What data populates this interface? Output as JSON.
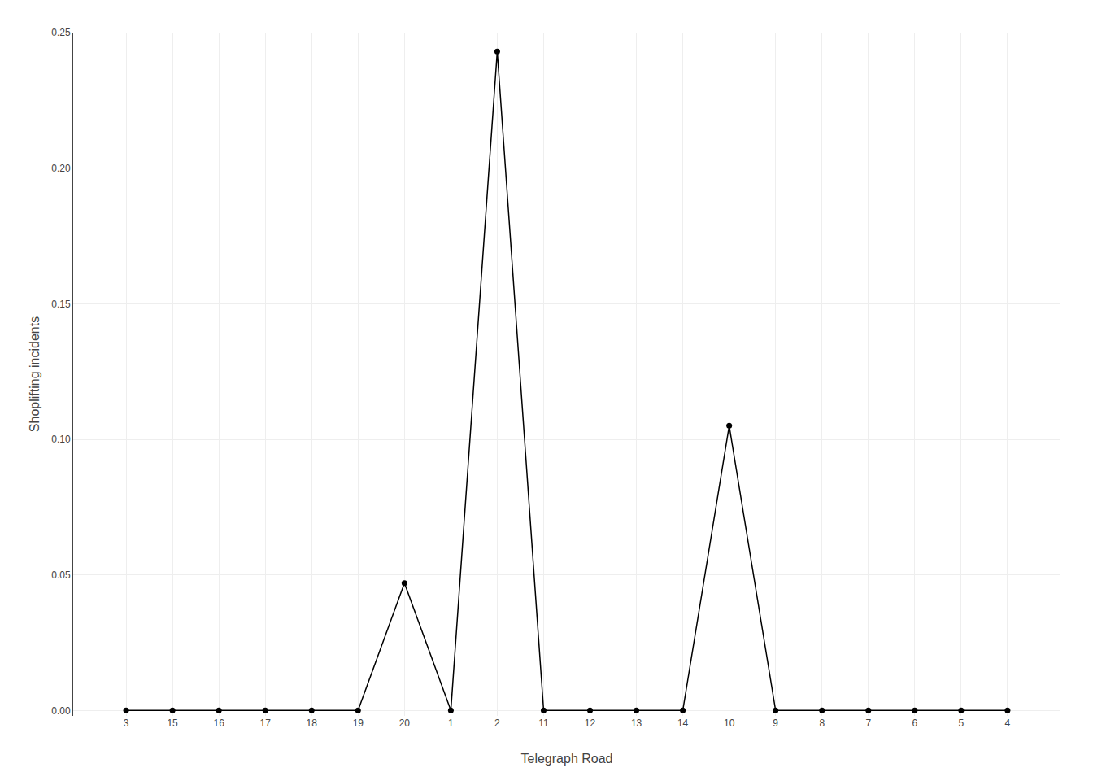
{
  "chart_data": {
    "type": "line",
    "categories": [
      "3",
      "15",
      "16",
      "17",
      "18",
      "19",
      "20",
      "1",
      "2",
      "11",
      "12",
      "13",
      "14",
      "10",
      "9",
      "8",
      "7",
      "6",
      "5",
      "4"
    ],
    "values": [
      0.0,
      0.0,
      0.0,
      0.0,
      0.0,
      0.0,
      0.047,
      0.0,
      0.243,
      0.0,
      0.0,
      0.0,
      0.0,
      0.105,
      0.0,
      0.0,
      0.0,
      0.0,
      0.0,
      0.0
    ],
    "xlabel": "Telegraph Road",
    "ylabel": "Shoplifting incidents",
    "ylim": [
      -0.002,
      0.25
    ],
    "yticks": [
      {
        "value": 0.0,
        "label": "0.00"
      },
      {
        "value": 0.05,
        "label": "0.05"
      },
      {
        "value": 0.1,
        "label": "0.10"
      },
      {
        "value": 0.15,
        "label": "0.15"
      },
      {
        "value": 0.2,
        "label": "0.20"
      },
      {
        "value": 0.25,
        "label": "0.25"
      }
    ],
    "color": "#000000",
    "marker": "circle",
    "line_style": "solid",
    "grid": true
  }
}
